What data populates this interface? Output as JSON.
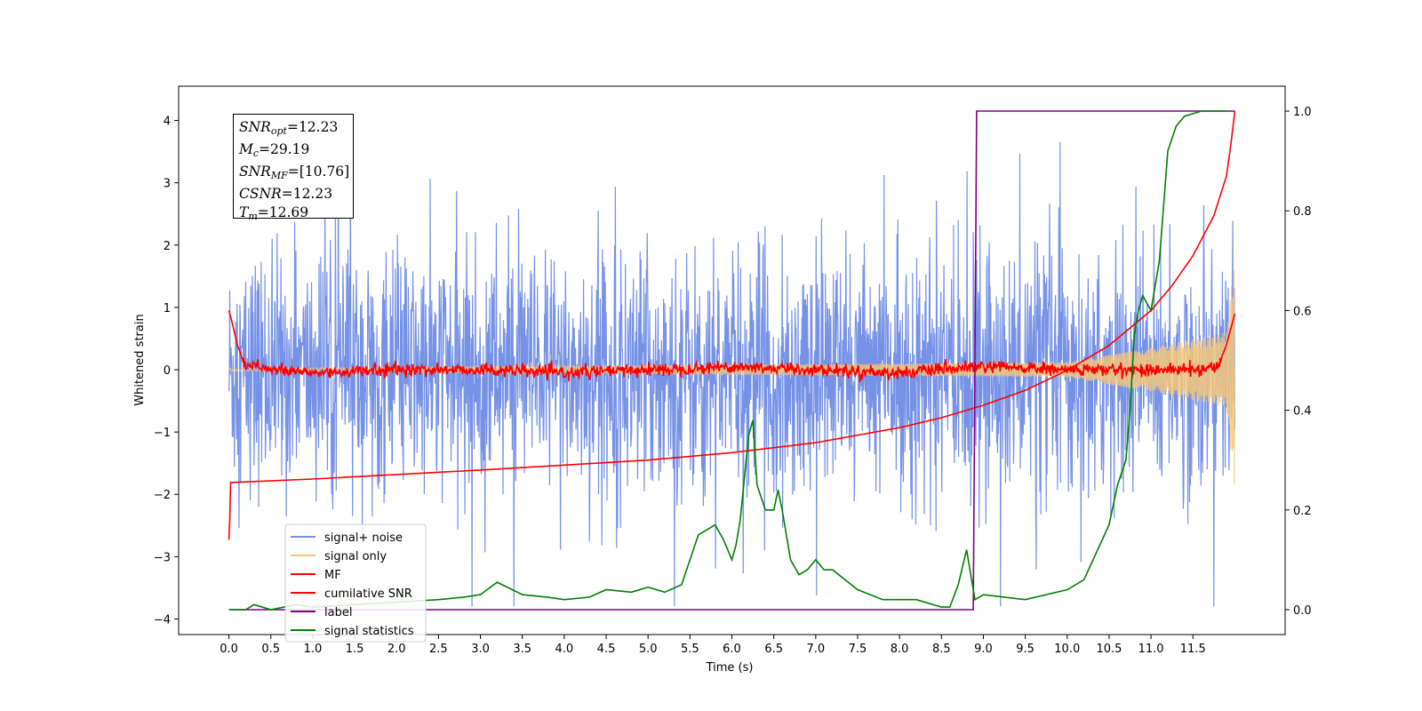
{
  "chart_data": {
    "type": "line",
    "xlabel": "Time (s)",
    "ylabel": "Whitened strain",
    "xlim": [
      -0.6,
      12.6
    ],
    "ylim": [
      -4.25,
      4.55
    ],
    "y2lim": [
      -0.05,
      1.05
    ],
    "xticks": [
      "0.0",
      "0.5",
      "1.0",
      "1.5",
      "2.0",
      "2.5",
      "3.0",
      "3.5",
      "4.0",
      "4.5",
      "5.0",
      "5.5",
      "6.0",
      "6.5",
      "7.0",
      "7.5",
      "8.0",
      "8.5",
      "9.0",
      "9.5",
      "10.0",
      "10.5",
      "11.0",
      "11.5"
    ],
    "yticks": [
      "4",
      "3",
      "2",
      "1",
      "0",
      "−1",
      "−2",
      "−3",
      "−4"
    ],
    "y2ticks": [
      "1.0",
      "0.8",
      "0.6",
      "0.4",
      "0.2",
      "0.0"
    ],
    "grid": false,
    "legend_position": "lower left",
    "colors": {
      "signal_noise": "#7692e6",
      "signal_only": "#f5c77b",
      "mf": "#ff0000",
      "cumulative_snr": "#ff0000",
      "label": "#800080",
      "signal_statistics": "#008000"
    },
    "series": [
      {
        "name": "signal+ noise",
        "description_range": [
          -3.8,
          4.2
        ],
        "axis": "left"
      },
      {
        "name": "signal only",
        "axis": "left",
        "envelope": {
          "x": [
            0.0,
            10.0,
            11.0,
            11.9,
            12.0
          ],
          "amp": [
            0.02,
            0.12,
            0.35,
            0.6,
            1.9
          ]
        }
      },
      {
        "name": "MF",
        "axis": "left",
        "x": [
          0.0,
          0.03,
          0.1,
          0.2,
          0.3,
          0.5,
          1.0,
          2.0,
          3.0,
          4.0,
          5.0,
          6.0,
          7.0,
          8.0,
          9.0,
          10.0,
          11.0,
          11.5,
          11.8,
          11.9,
          12.0
        ],
        "y": [
          0.95,
          0.8,
          0.4,
          0.05,
          0.1,
          0.0,
          -0.05,
          0.0,
          0.0,
          -0.05,
          0.0,
          0.05,
          0.0,
          -0.05,
          0.05,
          0.0,
          0.0,
          0.0,
          0.05,
          0.4,
          0.9
        ]
      },
      {
        "name": "cumilative SNR",
        "axis": "right",
        "x": [
          0.0,
          0.01,
          0.02,
          1.0,
          2.0,
          3.0,
          4.0,
          5.0,
          6.0,
          7.0,
          8.0,
          8.5,
          9.0,
          9.5,
          10.0,
          10.5,
          11.0,
          11.25,
          11.5,
          11.75,
          11.9,
          11.95,
          12.0
        ],
        "y": [
          0.14,
          0.18,
          0.255,
          0.262,
          0.271,
          0.28,
          0.29,
          0.3,
          0.315,
          0.335,
          0.365,
          0.385,
          0.41,
          0.44,
          0.48,
          0.53,
          0.6,
          0.65,
          0.71,
          0.79,
          0.87,
          0.93,
          1.0
        ]
      },
      {
        "name": "label",
        "axis": "right",
        "x": [
          0.0,
          8.88,
          8.92,
          12.0
        ],
        "y": [
          0.0,
          0.0,
          1.0,
          1.0
        ]
      },
      {
        "name": "signal statistics",
        "axis": "right",
        "x": [
          0.0,
          0.1,
          0.2,
          0.3,
          0.5,
          0.8,
          1.0,
          1.5,
          2.0,
          2.5,
          2.8,
          3.0,
          3.2,
          3.5,
          3.8,
          4.0,
          4.3,
          4.5,
          4.8,
          5.0,
          5.2,
          5.4,
          5.5,
          5.6,
          5.7,
          5.8,
          5.9,
          6.0,
          6.05,
          6.1,
          6.2,
          6.25,
          6.3,
          6.4,
          6.5,
          6.55,
          6.6,
          6.7,
          6.8,
          6.9,
          7.0,
          7.1,
          7.2,
          7.5,
          7.8,
          8.0,
          8.2,
          8.5,
          8.6,
          8.7,
          8.8,
          8.9,
          9.0,
          9.5,
          10.0,
          10.2,
          10.5,
          10.6,
          10.7,
          10.75,
          10.8,
          10.85,
          10.9,
          11.0,
          11.1,
          11.2,
          11.3,
          11.4,
          11.5,
          11.6,
          11.7,
          11.8,
          11.9
        ],
        "y": [
          0.0,
          0.0,
          0.0,
          0.01,
          0.0,
          0.01,
          0.005,
          0.01,
          0.015,
          0.02,
          0.025,
          0.03,
          0.055,
          0.03,
          0.025,
          0.02,
          0.025,
          0.04,
          0.035,
          0.045,
          0.035,
          0.05,
          0.1,
          0.15,
          0.16,
          0.17,
          0.14,
          0.1,
          0.13,
          0.18,
          0.35,
          0.38,
          0.25,
          0.2,
          0.2,
          0.24,
          0.2,
          0.1,
          0.07,
          0.08,
          0.1,
          0.08,
          0.08,
          0.04,
          0.02,
          0.02,
          0.02,
          0.005,
          0.005,
          0.05,
          0.12,
          0.02,
          0.03,
          0.02,
          0.04,
          0.06,
          0.17,
          0.25,
          0.3,
          0.4,
          0.55,
          0.6,
          0.63,
          0.6,
          0.7,
          0.92,
          0.97,
          0.99,
          0.995,
          1.0,
          1.0,
          1.0,
          1.0
        ]
      }
    ]
  },
  "annotation": {
    "snr_opt": {
      "sym": "SNR",
      "sub": "opt",
      "val": "=12.23"
    },
    "mc": {
      "sym": "M",
      "sub": "c",
      "val": "=29.19"
    },
    "snr_mf": {
      "sym": "SNR",
      "sub": "MF",
      "val": "=[10.76]"
    },
    "csnr": {
      "sym": "CSNR",
      "val": "=12.23"
    },
    "tm": {
      "sym": "T",
      "sub": "m",
      "val": "=12.69"
    }
  }
}
